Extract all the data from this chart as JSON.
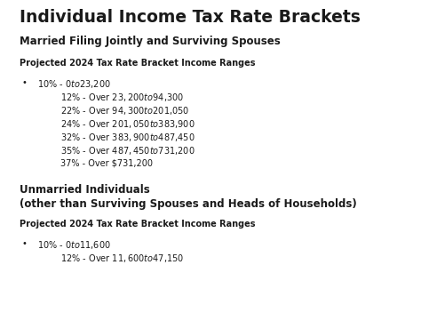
{
  "title": "Individual Income Tax Rate Brackets",
  "section1_header": "Married Filing Jointly and Surviving Spouses",
  "section1_subheader": "Projected 2024 Tax Rate Bracket Income Ranges",
  "section1_bullet": "10% - $0 to $23,200",
  "section1_lines": [
    "12% - Over $23,200 to $94,300",
    "22% - Over $94,300 to $201,050",
    "24% - Over $201,050 to $383,900",
    "32% - Over $383,900 to $487,450",
    "35% - Over $487,450 to $731,200",
    "37% - Over $731,200"
  ],
  "section2_header1": "Unmarried Individuals",
  "section2_header2": "(other than Surviving Spouses and Heads of Households)",
  "section2_subheader": "Projected 2024 Tax Rate Bracket Income Ranges",
  "section2_bullet": "10% - $0 to $11,600",
  "section2_lines": [
    "12% - Over $11,600 to $47,150"
  ],
  "bg_color": "#ffffff",
  "text_color": "#1a1a1a",
  "title_fontsize": 13.5,
  "header_fontsize": 8.5,
  "subheader_fontsize": 7.0,
  "body_fontsize": 7.0
}
